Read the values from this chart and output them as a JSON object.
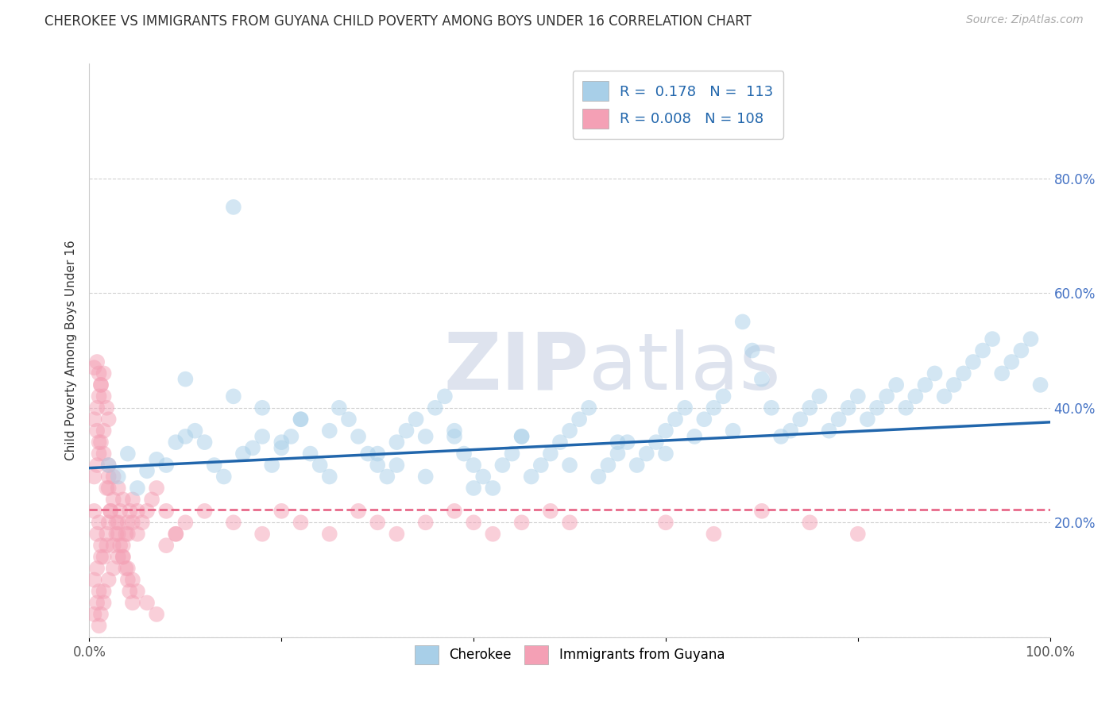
{
  "title": "CHEROKEE VS IMMIGRANTS FROM GUYANA CHILD POVERTY AMONG BOYS UNDER 16 CORRELATION CHART",
  "source": "Source: ZipAtlas.com",
  "ylabel": "Child Poverty Among Boys Under 16",
  "R_cherokee": 0.178,
  "N_cherokee": 113,
  "R_guyana": 0.008,
  "N_guyana": 108,
  "xlim": [
    0,
    1.0
  ],
  "ylim": [
    0,
    1.0
  ],
  "xticks": [
    0.0,
    0.2,
    0.4,
    0.6,
    0.8,
    1.0
  ],
  "xticklabels": [
    "0.0%",
    "",
    "",
    "",
    "",
    "100.0%"
  ],
  "yticks": [
    0.0,
    0.2,
    0.4,
    0.6,
    0.8
  ],
  "yticklabels_right": [
    "",
    "20.0%",
    "40.0%",
    "60.0%",
    "80.0%"
  ],
  "color_cherokee": "#a8cfe8",
  "color_guyana": "#f4a0b5",
  "line_cherokee": "#2166ac",
  "line_guyana": "#e8698a",
  "watermark_zip": "ZIP",
  "watermark_atlas": "atlas",
  "legend_label_cherokee": "Cherokee",
  "legend_label_guyana": "Immigrants from Guyana",
  "background_color": "#ffffff",
  "grid_color": "#cccccc",
  "cherokee_x": [
    0.02,
    0.03,
    0.04,
    0.05,
    0.06,
    0.07,
    0.08,
    0.09,
    0.1,
    0.11,
    0.12,
    0.13,
    0.14,
    0.15,
    0.16,
    0.17,
    0.18,
    0.19,
    0.2,
    0.21,
    0.22,
    0.23,
    0.24,
    0.25,
    0.26,
    0.27,
    0.28,
    0.29,
    0.3,
    0.31,
    0.32,
    0.33,
    0.34,
    0.35,
    0.36,
    0.37,
    0.38,
    0.39,
    0.4,
    0.41,
    0.42,
    0.43,
    0.44,
    0.45,
    0.46,
    0.47,
    0.48,
    0.49,
    0.5,
    0.51,
    0.52,
    0.53,
    0.54,
    0.55,
    0.56,
    0.57,
    0.58,
    0.59,
    0.6,
    0.61,
    0.62,
    0.63,
    0.64,
    0.65,
    0.66,
    0.67,
    0.68,
    0.69,
    0.7,
    0.71,
    0.72,
    0.73,
    0.74,
    0.75,
    0.76,
    0.77,
    0.78,
    0.79,
    0.8,
    0.81,
    0.82,
    0.83,
    0.84,
    0.85,
    0.86,
    0.87,
    0.88,
    0.89,
    0.9,
    0.91,
    0.92,
    0.93,
    0.94,
    0.95,
    0.96,
    0.97,
    0.98,
    0.99,
    0.3,
    0.32,
    0.1,
    0.15,
    0.18,
    0.22,
    0.25,
    0.55,
    0.6,
    0.45,
    0.5,
    0.35,
    0.4,
    0.2,
    0.38
  ],
  "cherokee_y": [
    0.3,
    0.28,
    0.32,
    0.26,
    0.29,
    0.31,
    0.3,
    0.34,
    0.35,
    0.36,
    0.34,
    0.3,
    0.28,
    0.75,
    0.32,
    0.33,
    0.35,
    0.3,
    0.33,
    0.35,
    0.38,
    0.32,
    0.3,
    0.28,
    0.4,
    0.38,
    0.35,
    0.32,
    0.3,
    0.28,
    0.34,
    0.36,
    0.38,
    0.35,
    0.4,
    0.42,
    0.35,
    0.32,
    0.3,
    0.28,
    0.26,
    0.3,
    0.32,
    0.35,
    0.28,
    0.3,
    0.32,
    0.34,
    0.36,
    0.38,
    0.4,
    0.28,
    0.3,
    0.32,
    0.34,
    0.3,
    0.32,
    0.34,
    0.36,
    0.38,
    0.4,
    0.35,
    0.38,
    0.4,
    0.42,
    0.36,
    0.55,
    0.5,
    0.45,
    0.4,
    0.35,
    0.36,
    0.38,
    0.4,
    0.42,
    0.36,
    0.38,
    0.4,
    0.42,
    0.38,
    0.4,
    0.42,
    0.44,
    0.4,
    0.42,
    0.44,
    0.46,
    0.42,
    0.44,
    0.46,
    0.48,
    0.5,
    0.52,
    0.46,
    0.48,
    0.5,
    0.52,
    0.44,
    0.32,
    0.3,
    0.45,
    0.42,
    0.4,
    0.38,
    0.36,
    0.34,
    0.32,
    0.35,
    0.3,
    0.28,
    0.26,
    0.34,
    0.36
  ],
  "guyana_x": [
    0.005,
    0.008,
    0.01,
    0.012,
    0.015,
    0.018,
    0.02,
    0.022,
    0.025,
    0.028,
    0.03,
    0.032,
    0.035,
    0.038,
    0.04,
    0.042,
    0.045,
    0.005,
    0.008,
    0.01,
    0.012,
    0.015,
    0.018,
    0.02,
    0.005,
    0.008,
    0.01,
    0.012,
    0.015,
    0.005,
    0.008,
    0.01,
    0.012,
    0.015,
    0.018,
    0.02,
    0.022,
    0.025,
    0.028,
    0.03,
    0.032,
    0.035,
    0.038,
    0.04,
    0.042,
    0.045,
    0.05,
    0.055,
    0.06,
    0.065,
    0.07,
    0.08,
    0.09,
    0.1,
    0.12,
    0.15,
    0.18,
    0.2,
    0.22,
    0.25,
    0.28,
    0.3,
    0.32,
    0.35,
    0.38,
    0.4,
    0.42,
    0.45,
    0.48,
    0.5,
    0.008,
    0.01,
    0.012,
    0.015,
    0.018,
    0.02,
    0.005,
    0.008,
    0.01,
    0.012,
    0.015,
    0.02,
    0.025,
    0.03,
    0.035,
    0.04,
    0.045,
    0.05,
    0.6,
    0.65,
    0.7,
    0.75,
    0.8,
    0.005,
    0.008,
    0.01,
    0.015,
    0.02,
    0.025,
    0.03,
    0.035,
    0.04,
    0.045,
    0.05,
    0.06,
    0.07,
    0.08,
    0.09
  ],
  "guyana_y": [
    0.22,
    0.18,
    0.2,
    0.16,
    0.14,
    0.18,
    0.2,
    0.22,
    0.16,
    0.18,
    0.2,
    0.22,
    0.24,
    0.18,
    0.2,
    0.22,
    0.24,
    0.1,
    0.12,
    0.08,
    0.14,
    0.06,
    0.16,
    0.26,
    0.28,
    0.3,
    0.32,
    0.34,
    0.36,
    0.38,
    0.4,
    0.42,
    0.44,
    0.46,
    0.26,
    0.28,
    0.22,
    0.24,
    0.2,
    0.18,
    0.16,
    0.14,
    0.12,
    0.1,
    0.08,
    0.06,
    0.18,
    0.2,
    0.22,
    0.24,
    0.26,
    0.22,
    0.18,
    0.2,
    0.22,
    0.2,
    0.18,
    0.22,
    0.2,
    0.18,
    0.22,
    0.2,
    0.18,
    0.2,
    0.22,
    0.2,
    0.18,
    0.2,
    0.22,
    0.2,
    0.48,
    0.46,
    0.44,
    0.42,
    0.4,
    0.38,
    0.04,
    0.06,
    0.02,
    0.04,
    0.08,
    0.1,
    0.12,
    0.14,
    0.16,
    0.18,
    0.2,
    0.22,
    0.2,
    0.18,
    0.22,
    0.2,
    0.18,
    0.47,
    0.36,
    0.34,
    0.32,
    0.3,
    0.28,
    0.26,
    0.14,
    0.12,
    0.1,
    0.08,
    0.06,
    0.04,
    0.16,
    0.18
  ]
}
